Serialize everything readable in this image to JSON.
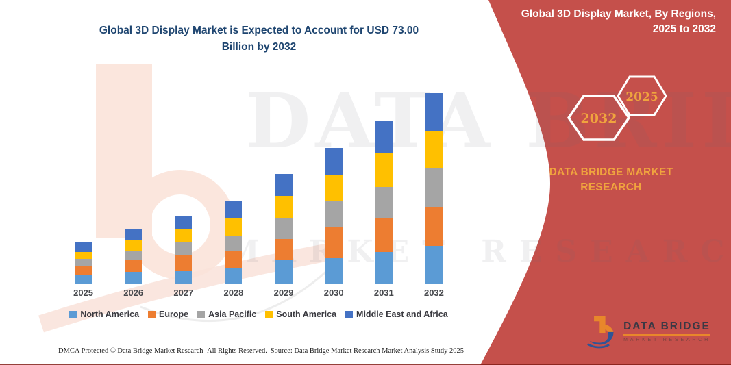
{
  "page": {
    "title_line1": "Global 3D Display Market is Expected to Account for USD 73.00",
    "title_line2": "Billion by 2032"
  },
  "side_panel": {
    "heading_line1": "Global 3D Display Market, By Regions,",
    "heading_line2": "2025 to 2032",
    "hexagons": [
      {
        "year": "2032"
      },
      {
        "year": "2025"
      }
    ],
    "brand_caption_line1": "DATA BRIDGE MARKET",
    "brand_caption_line2": "RESEARCH",
    "panel_color": "#C5504B",
    "accent_text_color": "#F0A43E",
    "logo": {
      "name_text": "DATA BRIDGE",
      "sub_text": "MARKET RESEARCH"
    }
  },
  "watermark": {
    "row1": "DATA BRIDGE",
    "row2": "MARKET RESEARCH"
  },
  "footer": {
    "left": "DMCA Protected © Data Bridge Market Research-  All Rights Reserved.",
    "right": "Source: Data Bridge Market Research  Market Analysis Study 2025"
  },
  "chart_data": {
    "type": "bar",
    "stacked": true,
    "title": "Global 3D Display Market is Expected to Account for USD 73.00 Billion by 2032",
    "unit": "USD Billion",
    "categories": [
      "2025",
      "2026",
      "2027",
      "2028",
      "2029",
      "2030",
      "2031",
      "2032"
    ],
    "series": [
      {
        "name": "North America",
        "color": "#5B9BD5",
        "values": [
          3.2,
          4.4,
          4.8,
          5.8,
          9.0,
          9.8,
          12.2,
          14.4
        ]
      },
      {
        "name": "Europe",
        "color": "#ED7D31",
        "values": [
          3.4,
          4.4,
          6.1,
          6.6,
          8.2,
          12.1,
          12.7,
          14.9
        ]
      },
      {
        "name": "Asia Pacific",
        "color": "#A5A5A5",
        "values": [
          2.9,
          3.9,
          5.2,
          6.1,
          8.0,
          9.8,
          12.2,
          14.9
        ]
      },
      {
        "name": "South America",
        "color": "#FFC000",
        "values": [
          2.5,
          4.2,
          4.8,
          6.4,
          8.5,
          10.2,
          12.7,
          14.5
        ]
      },
      {
        "name": "Middle East and Africa",
        "color": "#4472C4",
        "values": [
          3.9,
          3.9,
          4.8,
          6.5,
          8.2,
          10.0,
          12.4,
          14.3
        ]
      }
    ],
    "totals": [
      15.9,
      20.8,
      25.7,
      31.4,
      41.9,
      51.9,
      62.2,
      73.0
    ],
    "ylim": [
      0,
      73
    ],
    "grid": false,
    "value_axis_visible": false,
    "legend_position": "bottom"
  }
}
